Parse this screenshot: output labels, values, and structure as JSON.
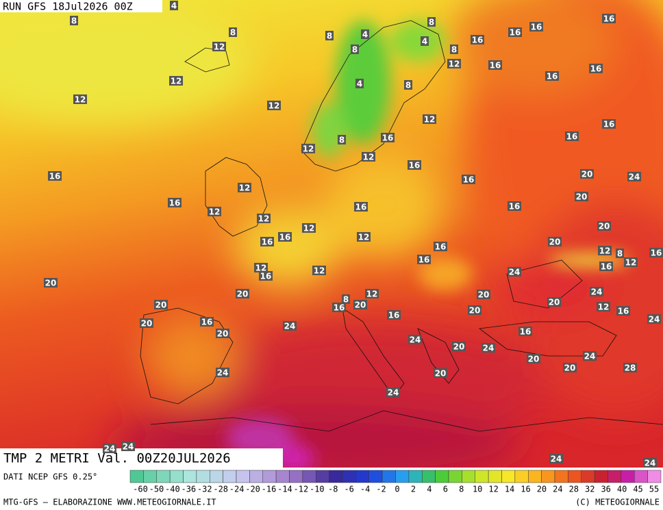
{
  "header": {
    "run": "RUN GFS 18Jul2026 00Z"
  },
  "caption": "TMP 2 METRI Val. 00Z20JUL2026",
  "source": "DATI NCEP GFS 0.25°",
  "legend": {
    "ticks": [
      -60,
      -50,
      -40,
      -36,
      -32,
      -28,
      -24,
      -20,
      -16,
      -14,
      -12,
      -10,
      -8,
      -6,
      -4,
      -2,
      0,
      2,
      4,
      6,
      8,
      10,
      12,
      14,
      16,
      20,
      24,
      28,
      32,
      36,
      40,
      45,
      55
    ]
  },
  "footer": {
    "left": "MTG-GFS — ELABORAZIONE WWW.METEOGIORNALE.IT",
    "right": "(C) METEOGIORNALE"
  },
  "map": {
    "labels": [
      4,
      8,
      8,
      8,
      4,
      8,
      4,
      8,
      16,
      16,
      16,
      16,
      12,
      8,
      12,
      16,
      16,
      16,
      12,
      4,
      8,
      12,
      12,
      12,
      16,
      8,
      16,
      16,
      12,
      12,
      16,
      16,
      20,
      24,
      16,
      12,
      16,
      16,
      16,
      20,
      12,
      12,
      12,
      20,
      16,
      16,
      12,
      20,
      16,
      12,
      8,
      16,
      16,
      16,
      12,
      12,
      16,
      12,
      24,
      20,
      20,
      12,
      8,
      20,
      24,
      20,
      16,
      20,
      20,
      12,
      16,
      24,
      20,
      16,
      20,
      16,
      24,
      20,
      16,
      24,
      20,
      24,
      20,
      24,
      24,
      20,
      20,
      28,
      24,
      24,
      24,
      24,
      24
    ]
  }
}
